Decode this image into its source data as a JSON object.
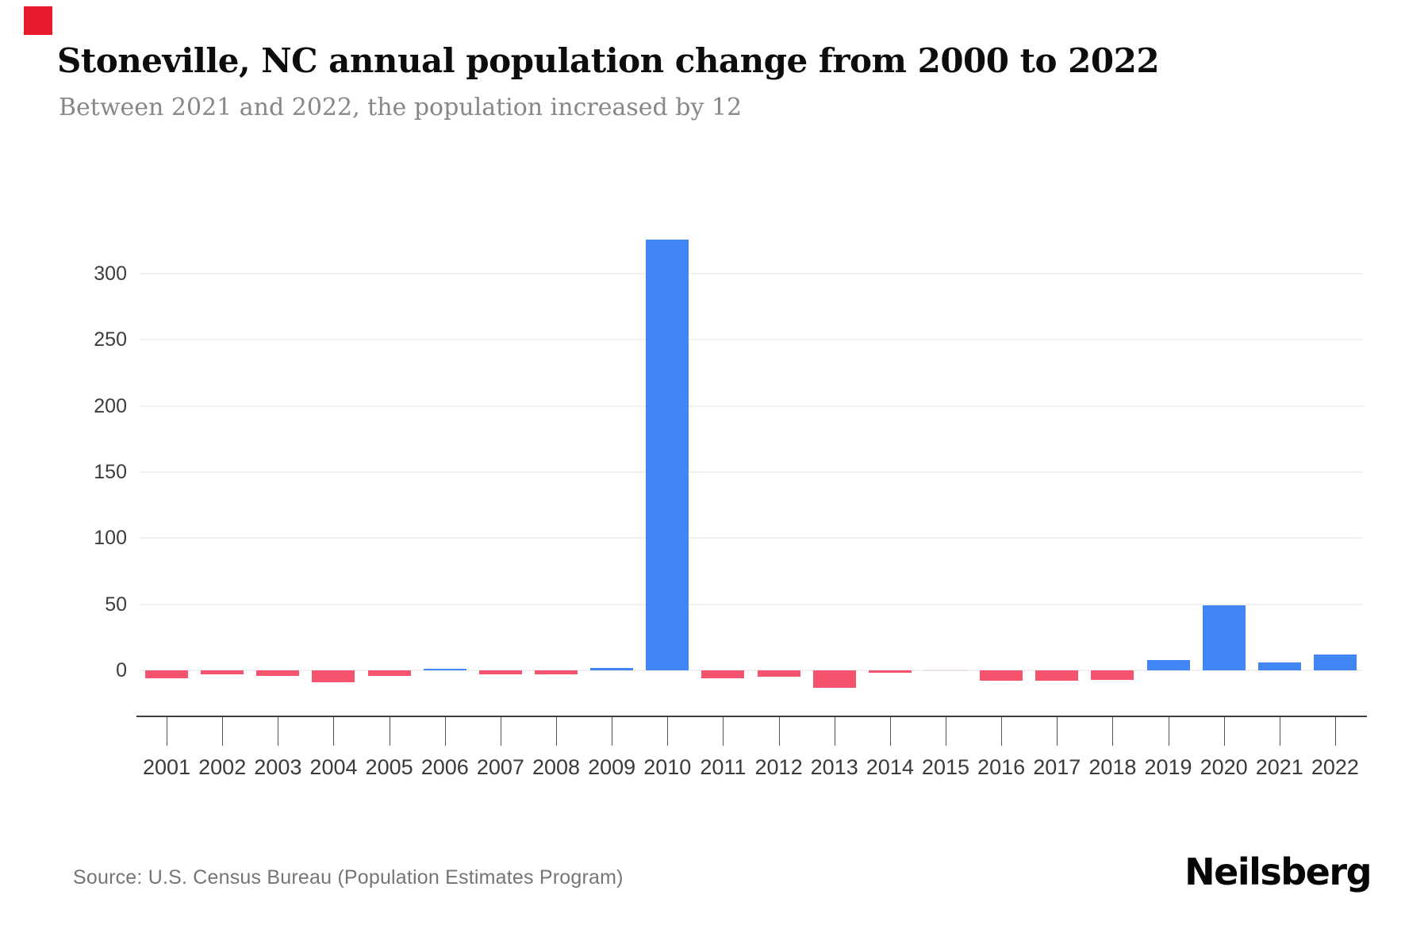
{
  "header": {
    "title": "Stoneville, NC annual population change from 2000 to 2022",
    "subtitle": "Between 2021 and 2022, the population increased by 12"
  },
  "footer": {
    "source": "Source: U.S. Census Bureau (Population Estimates Program)"
  },
  "brand": {
    "wordmark": "Neilsberg",
    "mark_color": "#e8192d"
  },
  "chart_data": {
    "type": "bar",
    "title": "Stoneville, NC annual population change from 2000 to 2022",
    "subtitle": "Between 2021 and 2022, the population increased by 12",
    "categories": [
      "2001",
      "2002",
      "2003",
      "2004",
      "2005",
      "2006",
      "2007",
      "2008",
      "2009",
      "2010",
      "2011",
      "2012",
      "2013",
      "2014",
      "2015",
      "2016",
      "2017",
      "2018",
      "2019",
      "2020",
      "2021",
      "2022"
    ],
    "values": [
      -6,
      -3,
      -4,
      -9,
      -4,
      1,
      -3,
      -3,
      2,
      326,
      -6,
      -5,
      -13,
      -2,
      0,
      -8,
      -8,
      -7,
      8,
      49,
      6,
      12
    ],
    "xlabel": "",
    "ylabel": "",
    "yticks": [
      0,
      50,
      100,
      150,
      200,
      250,
      300
    ],
    "ylim": [
      -20,
      350
    ],
    "grid": true,
    "legend": false,
    "colors": {
      "positive": "#4285F4",
      "negative": "#F6536F",
      "zero": "#EDE0E3"
    },
    "source": "Source: U.S. Census Bureau (Population Estimates Program)"
  }
}
